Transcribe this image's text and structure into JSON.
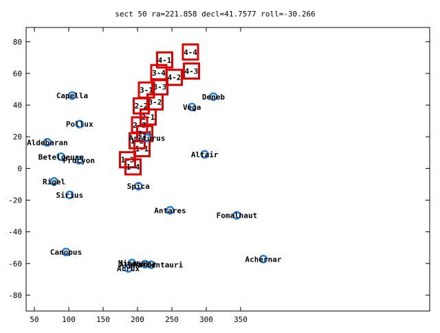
{
  "chart_data": {
    "type": "scatter",
    "title": "sect 50 ra=221.858 decl=41.7577 roll=-30.266",
    "xlabel": "",
    "ylabel": "",
    "xlim": [
      38,
      625
    ],
    "ylim": [
      -90,
      89
    ],
    "xticks": [
      50,
      100,
      150,
      200,
      250,
      300,
      350
    ],
    "yticks": [
      -80,
      -60,
      -40,
      -20,
      0,
      20,
      40,
      60,
      80
    ],
    "grid": false,
    "marker_color": "#1e7fe0",
    "box_color": "#e00000",
    "stars": [
      {
        "name": "Capella",
        "x": 105.0,
        "y": 46.0
      },
      {
        "name": "Pollux",
        "x": 115.8,
        "y": 28.0
      },
      {
        "name": "Aldebaran",
        "x": 68.9,
        "y": 16.5
      },
      {
        "name": "Betelgeuse",
        "x": 88.8,
        "y": 7.4
      },
      {
        "name": "Procyon",
        "x": 114.8,
        "y": 5.2
      },
      {
        "name": "Rigel",
        "x": 78.6,
        "y": -8.2
      },
      {
        "name": "Sirius",
        "x": 101.3,
        "y": -16.7
      },
      {
        "name": "Canopus",
        "x": 96.0,
        "y": -52.7
      },
      {
        "name": "Arcturus",
        "x": 213.9,
        "y": 19.2
      },
      {
        "name": "Spica",
        "x": 201.3,
        "y": -11.2
      },
      {
        "name": "Vega",
        "x": 279.2,
        "y": 38.8
      },
      {
        "name": "Deneb",
        "x": 310.4,
        "y": 45.3
      },
      {
        "name": "Altair",
        "x": 297.7,
        "y": 8.9
      },
      {
        "name": "Antares",
        "x": 247.4,
        "y": -26.4
      },
      {
        "name": "Fomalhaut",
        "x": 344.4,
        "y": -29.6
      },
      {
        "name": "Achernar",
        "x": 383.0,
        "y": -57.2
      },
      {
        "name": "Mimosa",
        "x": 191.9,
        "y": -59.7
      },
      {
        "name": "Acrux",
        "x": 186.6,
        "y": -63.1
      },
      {
        "name": "Hadar",
        "x": 210.9,
        "y": -60.4
      },
      {
        "name": "Alpha Centauri",
        "x": 219.9,
        "y": -60.8
      }
    ],
    "boxes": [
      {
        "label": "1-1",
        "x": 206.5,
        "y": 12.5
      },
      {
        "label": "1-2",
        "x": 199.5,
        "y": 17.5
      },
      {
        "label": "1-3",
        "x": 185.5,
        "y": 5.5
      },
      {
        "label": "1-4",
        "x": 193.5,
        "y": 1.0
      },
      {
        "label": "2-1",
        "x": 215.5,
        "y": 32.5
      },
      {
        "label": "2-2",
        "x": 205.5,
        "y": 39.5
      },
      {
        "label": "2-3",
        "x": 203.0,
        "y": 27.5
      },
      {
        "label": "2-4",
        "x": 210.5,
        "y": 22.0
      },
      {
        "label": "3-1",
        "x": 213.0,
        "y": 49.5
      },
      {
        "label": "3-2",
        "x": 225.5,
        "y": 42.0
      },
      {
        "label": "3-3",
        "x": 232.5,
        "y": 51.5
      },
      {
        "label": "3-4",
        "x": 231.0,
        "y": 60.5
      },
      {
        "label": "4-1",
        "x": 239.5,
        "y": 68.5
      },
      {
        "label": "4-2",
        "x": 253.5,
        "y": 57.5
      },
      {
        "label": "4-3",
        "x": 278.5,
        "y": 61.5
      },
      {
        "label": "4-4",
        "x": 277.0,
        "y": 73.5
      }
    ]
  }
}
